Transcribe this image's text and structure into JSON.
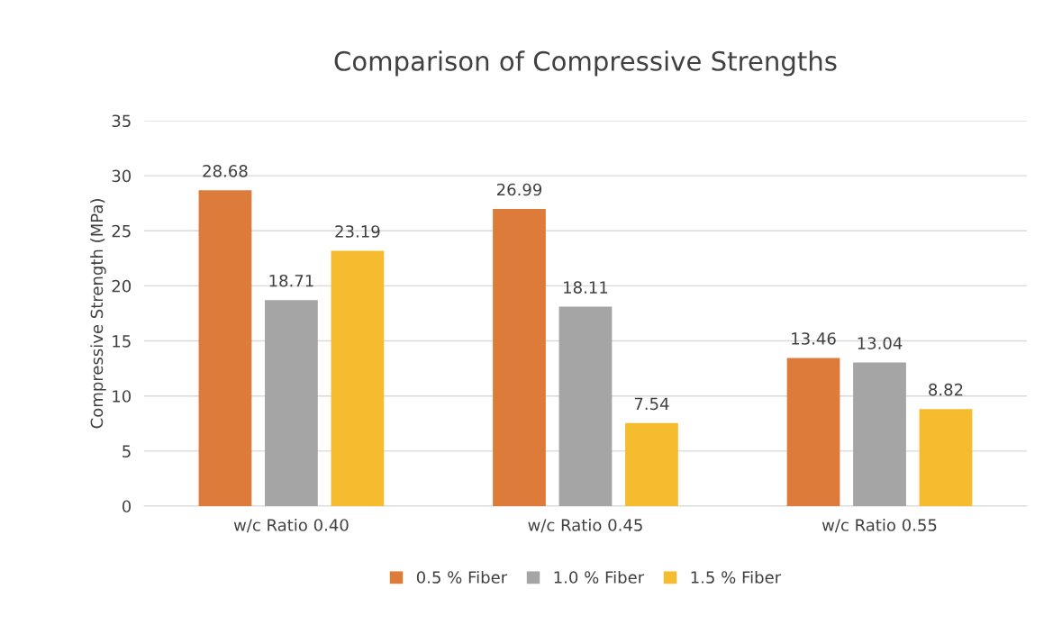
{
  "chart_data": {
    "type": "bar",
    "title": "Comparison of Compressive Strengths",
    "ylabel": "Compressive Strength (MPa)",
    "categories": [
      "w/c Ratio 0.40",
      "w/c Ratio 0.45",
      "w/c Ratio 0.55"
    ],
    "series": [
      {
        "name": "0.5 % Fiber",
        "color": "#dd7c3a",
        "values": [
          28.68,
          26.99,
          13.46
        ]
      },
      {
        "name": "1.0 % Fiber",
        "color": "#a5a5a5",
        "values": [
          18.71,
          18.11,
          13.04
        ]
      },
      {
        "name": "1.5 % Fiber",
        "color": "#f6bc2f",
        "values": [
          23.19,
          7.54,
          8.82
        ]
      }
    ],
    "ylim": [
      0,
      35
    ],
    "yticks": [
      0,
      5,
      10,
      15,
      20,
      25,
      30,
      35
    ],
    "grid": "y",
    "legend": "bottom",
    "data_labels": true
  }
}
